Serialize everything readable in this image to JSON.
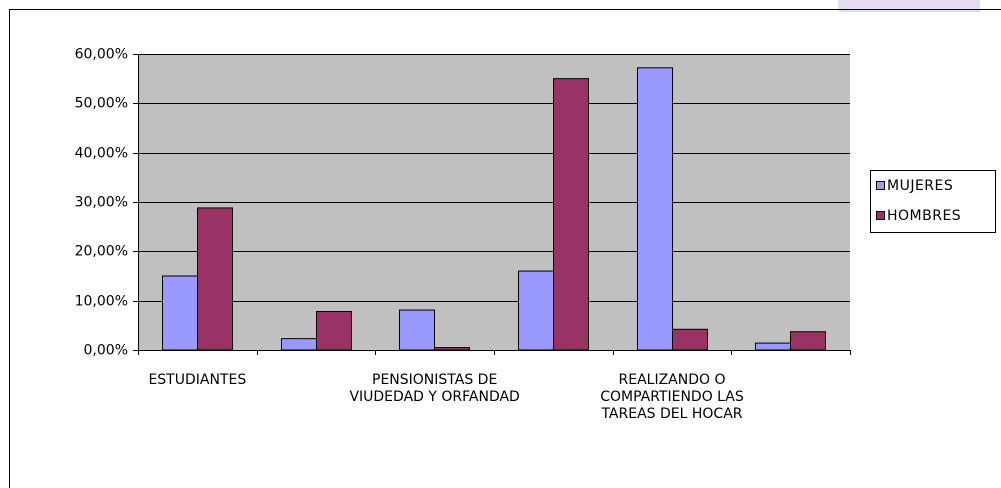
{
  "chart_data": {
    "type": "bar",
    "categories": [
      "ESTUDIANTES",
      null,
      "PENSIONISTAS DE VIUDEDAD Y ORFANDAD",
      null,
      "REALIZANDO O COMPARTIENDO LAS TAREAS DEL HOCAR",
      null
    ],
    "series": [
      {
        "name": "MUJERES",
        "color": "#9999ff",
        "values": [
          15,
          2.3,
          8.1,
          16,
          57.2,
          1.4
        ]
      },
      {
        "name": "HOMBRES",
        "color": "#993366",
        "values": [
          28.8,
          7.8,
          0.5,
          55,
          4.2,
          3.7
        ]
      }
    ],
    "ylim": [
      0,
      60
    ],
    "yticks": [
      {
        "value": 0,
        "label": "0,00%"
      },
      {
        "value": 10,
        "label": "10,00%"
      },
      {
        "value": 20,
        "label": "20,00%"
      },
      {
        "value": 30,
        "label": "30,00%"
      },
      {
        "value": 40,
        "label": "40,00%"
      },
      {
        "value": 50,
        "label": "50,00%"
      },
      {
        "value": 60,
        "label": "60,00%"
      }
    ],
    "grid": true,
    "legend": "right"
  }
}
